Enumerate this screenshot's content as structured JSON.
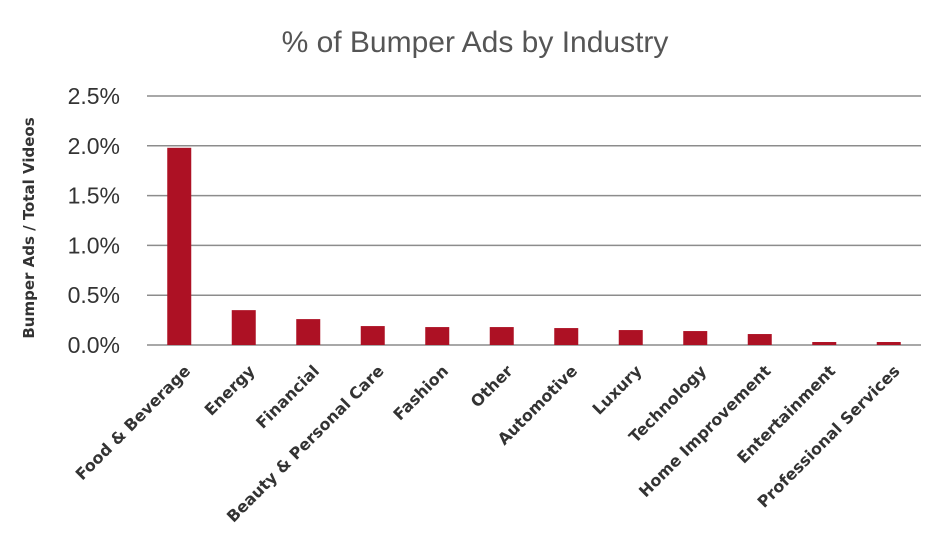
{
  "chart_data": {
    "type": "bar",
    "title": "% of Bumper Ads by Industry",
    "xlabel": "",
    "ylabel": "Bumper Ads / Total Videos",
    "ylim": [
      0,
      0.025
    ],
    "yticks": [
      "0.0%",
      "0.5%",
      "1.0%",
      "1.5%",
      "2.0%",
      "2.5%"
    ],
    "grid": true,
    "bar_color": "#ad1124",
    "categories": [
      "Food & Beverage",
      "Energy",
      "Financial",
      "Beauty & Personal Care",
      "Fashion",
      "Other",
      "Automotive",
      "Luxury",
      "Technology",
      "Home Improvement",
      "Entertainment",
      "Professional Services"
    ],
    "values": [
      0.0198,
      0.0035,
      0.0026,
      0.0019,
      0.0018,
      0.0018,
      0.0017,
      0.0015,
      0.0014,
      0.0011,
      0.0003,
      0.0003
    ]
  }
}
